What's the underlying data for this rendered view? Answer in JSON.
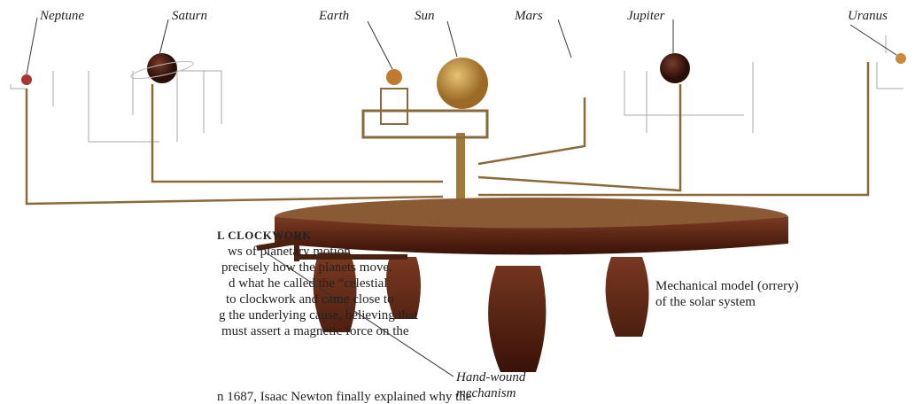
{
  "planet_labels": [
    "Neptune",
    "Saturn",
    "Earth",
    "Sun",
    "Mars",
    "Jupiter",
    "Uranus"
  ],
  "callout": {
    "lines": [
      "Hand-wound",
      "mechanism"
    ]
  },
  "caption": {
    "lines": [
      "Mechanical model (orrery)",
      "of the solar system"
    ]
  },
  "sidebar": {
    "heading": "L CLOCKWORK",
    "lines": [
      "ws of planetary motion",
      "precisely how the planets move.",
      "d what he called the “celestial",
      "to clockwork and came close to",
      "g the underlying cause, believing that",
      "must assert a magnetic force on the",
      "n 1687, Isaac Newton finally explained why the"
    ]
  }
}
